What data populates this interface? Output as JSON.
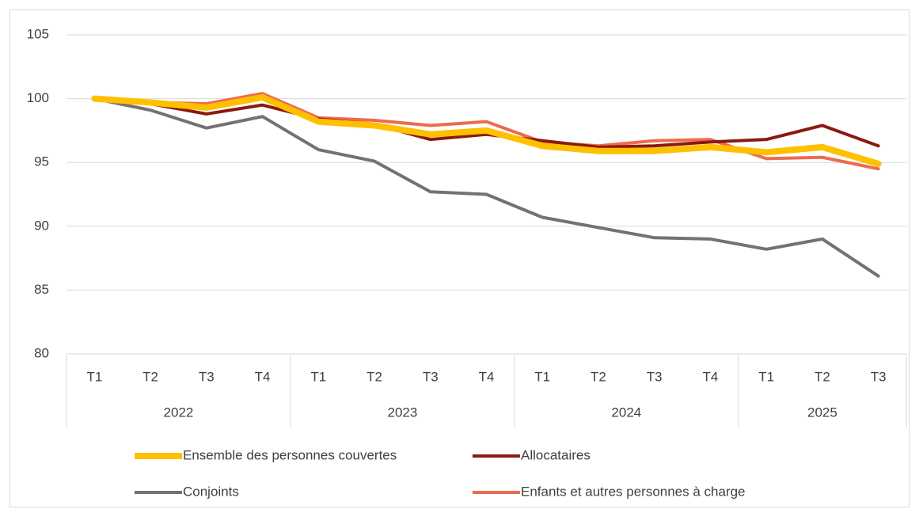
{
  "chart_data": {
    "type": "line",
    "categories": [
      "T1",
      "T2",
      "T3",
      "T4",
      "T1",
      "T2",
      "T3",
      "T4",
      "T1",
      "T2",
      "T3",
      "T4",
      "T1",
      "T2",
      "T3"
    ],
    "groups": [
      {
        "label": "2022",
        "span": 4
      },
      {
        "label": "2023",
        "span": 4
      },
      {
        "label": "2024",
        "span": 4
      },
      {
        "label": "2025",
        "span": 3
      }
    ],
    "series": [
      {
        "name": "Ensemble des personnes couvertes",
        "color": "#ffc000",
        "width": 8,
        "values": [
          100,
          99.7,
          99.3,
          100.1,
          98.2,
          97.9,
          97.2,
          97.5,
          96.3,
          95.9,
          95.9,
          96.2,
          95.8,
          96.2,
          94.9
        ]
      },
      {
        "name": "Allocataires",
        "color": "#8b1a0e",
        "width": 4,
        "values": [
          100,
          99.6,
          98.8,
          99.5,
          98.4,
          98.0,
          96.8,
          97.2,
          96.7,
          96.2,
          96.3,
          96.6,
          96.8,
          97.9,
          96.3
        ]
      },
      {
        "name": "Conjoints",
        "color": "#767171",
        "width": 4,
        "values": [
          100,
          99.1,
          97.7,
          98.6,
          96.0,
          95.1,
          92.7,
          92.5,
          90.7,
          89.9,
          89.1,
          89.0,
          88.2,
          89.0,
          86.1
        ]
      },
      {
        "name": "Enfants et autres personnes à charge",
        "color": "#ee6b4d",
        "width": 4,
        "values": [
          100,
          99.7,
          99.6,
          100.4,
          98.5,
          98.3,
          97.9,
          98.2,
          96.6,
          96.3,
          96.7,
          96.8,
          95.3,
          95.4,
          94.5
        ]
      }
    ],
    "ylim": [
      80,
      105
    ],
    "yticks": [
      80,
      85,
      90,
      95,
      100,
      105
    ],
    "grid": true,
    "legend": "bottom"
  }
}
